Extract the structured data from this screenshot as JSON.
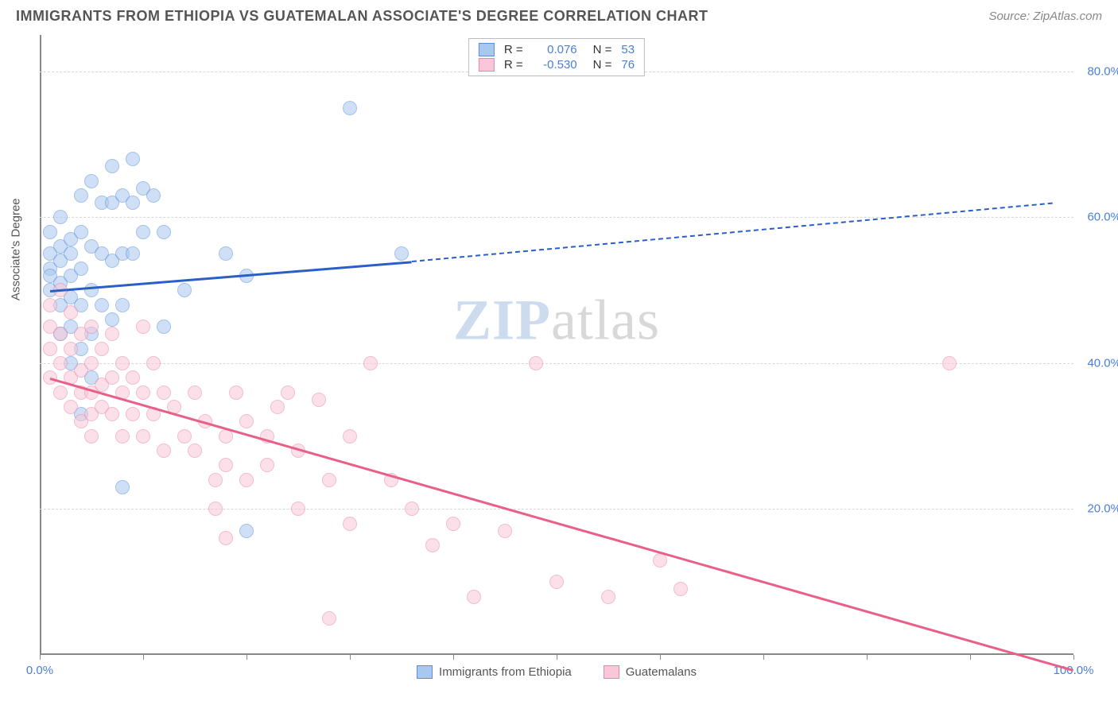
{
  "title": "IMMIGRANTS FROM ETHIOPIA VS GUATEMALAN ASSOCIATE'S DEGREE CORRELATION CHART",
  "source": "Source: ZipAtlas.com",
  "watermark_zip": "ZIP",
  "watermark_atlas": "atlas",
  "y_axis_label": "Associate's Degree",
  "chart": {
    "type": "scatter",
    "background_color": "#ffffff",
    "grid_color": "#d8d8d8",
    "axis_color": "#888888",
    "tick_label_color": "#4a7fd8",
    "xlim": [
      0,
      100
    ],
    "ylim": [
      0,
      85
    ],
    "x_ticks": [
      0,
      10,
      20,
      30,
      40,
      50,
      60,
      70,
      80,
      90,
      100
    ],
    "x_tick_labels": {
      "0": "0.0%",
      "100": "100.0%"
    },
    "y_ticks": [
      20,
      40,
      60,
      80
    ],
    "y_tick_labels": {
      "20": "20.0%",
      "40": "40.0%",
      "60": "60.0%",
      "80": "80.0%"
    },
    "marker_size": 16,
    "series": [
      {
        "name": "Immigrants from Ethiopia",
        "marker_fill": "#a8c8f0",
        "marker_stroke": "#5a8fd8",
        "line_color": "#2a5fc8",
        "r_value": "0.076",
        "n_value": "53",
        "trend": {
          "x1": 1,
          "y1": 50,
          "x2": 36,
          "y2": 54,
          "dash_to_x": 98,
          "dash_to_y": 62
        },
        "points": [
          [
            1,
            58
          ],
          [
            1,
            55
          ],
          [
            1,
            53
          ],
          [
            1,
            52
          ],
          [
            1,
            50
          ],
          [
            2,
            60
          ],
          [
            2,
            56
          ],
          [
            2,
            54
          ],
          [
            2,
            51
          ],
          [
            2,
            48
          ],
          [
            2,
            44
          ],
          [
            3,
            57
          ],
          [
            3,
            55
          ],
          [
            3,
            52
          ],
          [
            3,
            49
          ],
          [
            3,
            45
          ],
          [
            3,
            40
          ],
          [
            4,
            63
          ],
          [
            4,
            58
          ],
          [
            4,
            53
          ],
          [
            4,
            48
          ],
          [
            4,
            42
          ],
          [
            4,
            33
          ],
          [
            5,
            65
          ],
          [
            5,
            56
          ],
          [
            5,
            50
          ],
          [
            5,
            44
          ],
          [
            5,
            38
          ],
          [
            6,
            62
          ],
          [
            6,
            55
          ],
          [
            6,
            48
          ],
          [
            7,
            67
          ],
          [
            7,
            62
          ],
          [
            7,
            54
          ],
          [
            7,
            46
          ],
          [
            8,
            63
          ],
          [
            8,
            55
          ],
          [
            8,
            48
          ],
          [
            8,
            23
          ],
          [
            9,
            68
          ],
          [
            9,
            62
          ],
          [
            9,
            55
          ],
          [
            10,
            64
          ],
          [
            10,
            58
          ],
          [
            11,
            63
          ],
          [
            12,
            58
          ],
          [
            12,
            45
          ],
          [
            14,
            50
          ],
          [
            18,
            55
          ],
          [
            20,
            52
          ],
          [
            20,
            17
          ],
          [
            30,
            75
          ],
          [
            35,
            55
          ]
        ]
      },
      {
        "name": "Guatemalans",
        "marker_fill": "#f8c8d8",
        "marker_stroke": "#e888a8",
        "line_color": "#e86088",
        "r_value": "-0.530",
        "n_value": "76",
        "trend": {
          "x1": 1,
          "y1": 38,
          "x2": 100,
          "y2": -2
        },
        "points": [
          [
            1,
            48
          ],
          [
            1,
            45
          ],
          [
            1,
            42
          ],
          [
            1,
            38
          ],
          [
            2,
            50
          ],
          [
            2,
            44
          ],
          [
            2,
            40
          ],
          [
            2,
            36
          ],
          [
            3,
            47
          ],
          [
            3,
            42
          ],
          [
            3,
            38
          ],
          [
            3,
            34
          ],
          [
            4,
            44
          ],
          [
            4,
            39
          ],
          [
            4,
            36
          ],
          [
            4,
            32
          ],
          [
            5,
            45
          ],
          [
            5,
            40
          ],
          [
            5,
            36
          ],
          [
            5,
            33
          ],
          [
            5,
            30
          ],
          [
            6,
            42
          ],
          [
            6,
            37
          ],
          [
            6,
            34
          ],
          [
            7,
            44
          ],
          [
            7,
            38
          ],
          [
            7,
            33
          ],
          [
            8,
            40
          ],
          [
            8,
            36
          ],
          [
            8,
            30
          ],
          [
            9,
            38
          ],
          [
            9,
            33
          ],
          [
            10,
            45
          ],
          [
            10,
            36
          ],
          [
            10,
            30
          ],
          [
            11,
            40
          ],
          [
            11,
            33
          ],
          [
            12,
            36
          ],
          [
            12,
            28
          ],
          [
            13,
            34
          ],
          [
            14,
            30
          ],
          [
            15,
            36
          ],
          [
            15,
            28
          ],
          [
            16,
            32
          ],
          [
            17,
            24
          ],
          [
            17,
            20
          ],
          [
            18,
            30
          ],
          [
            18,
            26
          ],
          [
            18,
            16
          ],
          [
            19,
            36
          ],
          [
            20,
            32
          ],
          [
            20,
            24
          ],
          [
            22,
            30
          ],
          [
            22,
            26
          ],
          [
            23,
            34
          ],
          [
            24,
            36
          ],
          [
            25,
            28
          ],
          [
            25,
            20
          ],
          [
            27,
            35
          ],
          [
            28,
            24
          ],
          [
            28,
            5
          ],
          [
            30,
            30
          ],
          [
            30,
            18
          ],
          [
            32,
            40
          ],
          [
            34,
            24
          ],
          [
            36,
            20
          ],
          [
            38,
            15
          ],
          [
            40,
            18
          ],
          [
            42,
            8
          ],
          [
            45,
            17
          ],
          [
            48,
            40
          ],
          [
            50,
            10
          ],
          [
            55,
            8
          ],
          [
            60,
            13
          ],
          [
            62,
            9
          ],
          [
            88,
            40
          ]
        ]
      }
    ]
  },
  "legend_top": {
    "r_label": "R =",
    "n_label": "N ="
  },
  "legend_bottom": [
    {
      "swatch_fill": "#a8c8f0",
      "swatch_stroke": "#5a8fd8",
      "label": "Immigrants from Ethiopia"
    },
    {
      "swatch_fill": "#f8c8d8",
      "swatch_stroke": "#e888a8",
      "label": "Guatemalans"
    }
  ]
}
